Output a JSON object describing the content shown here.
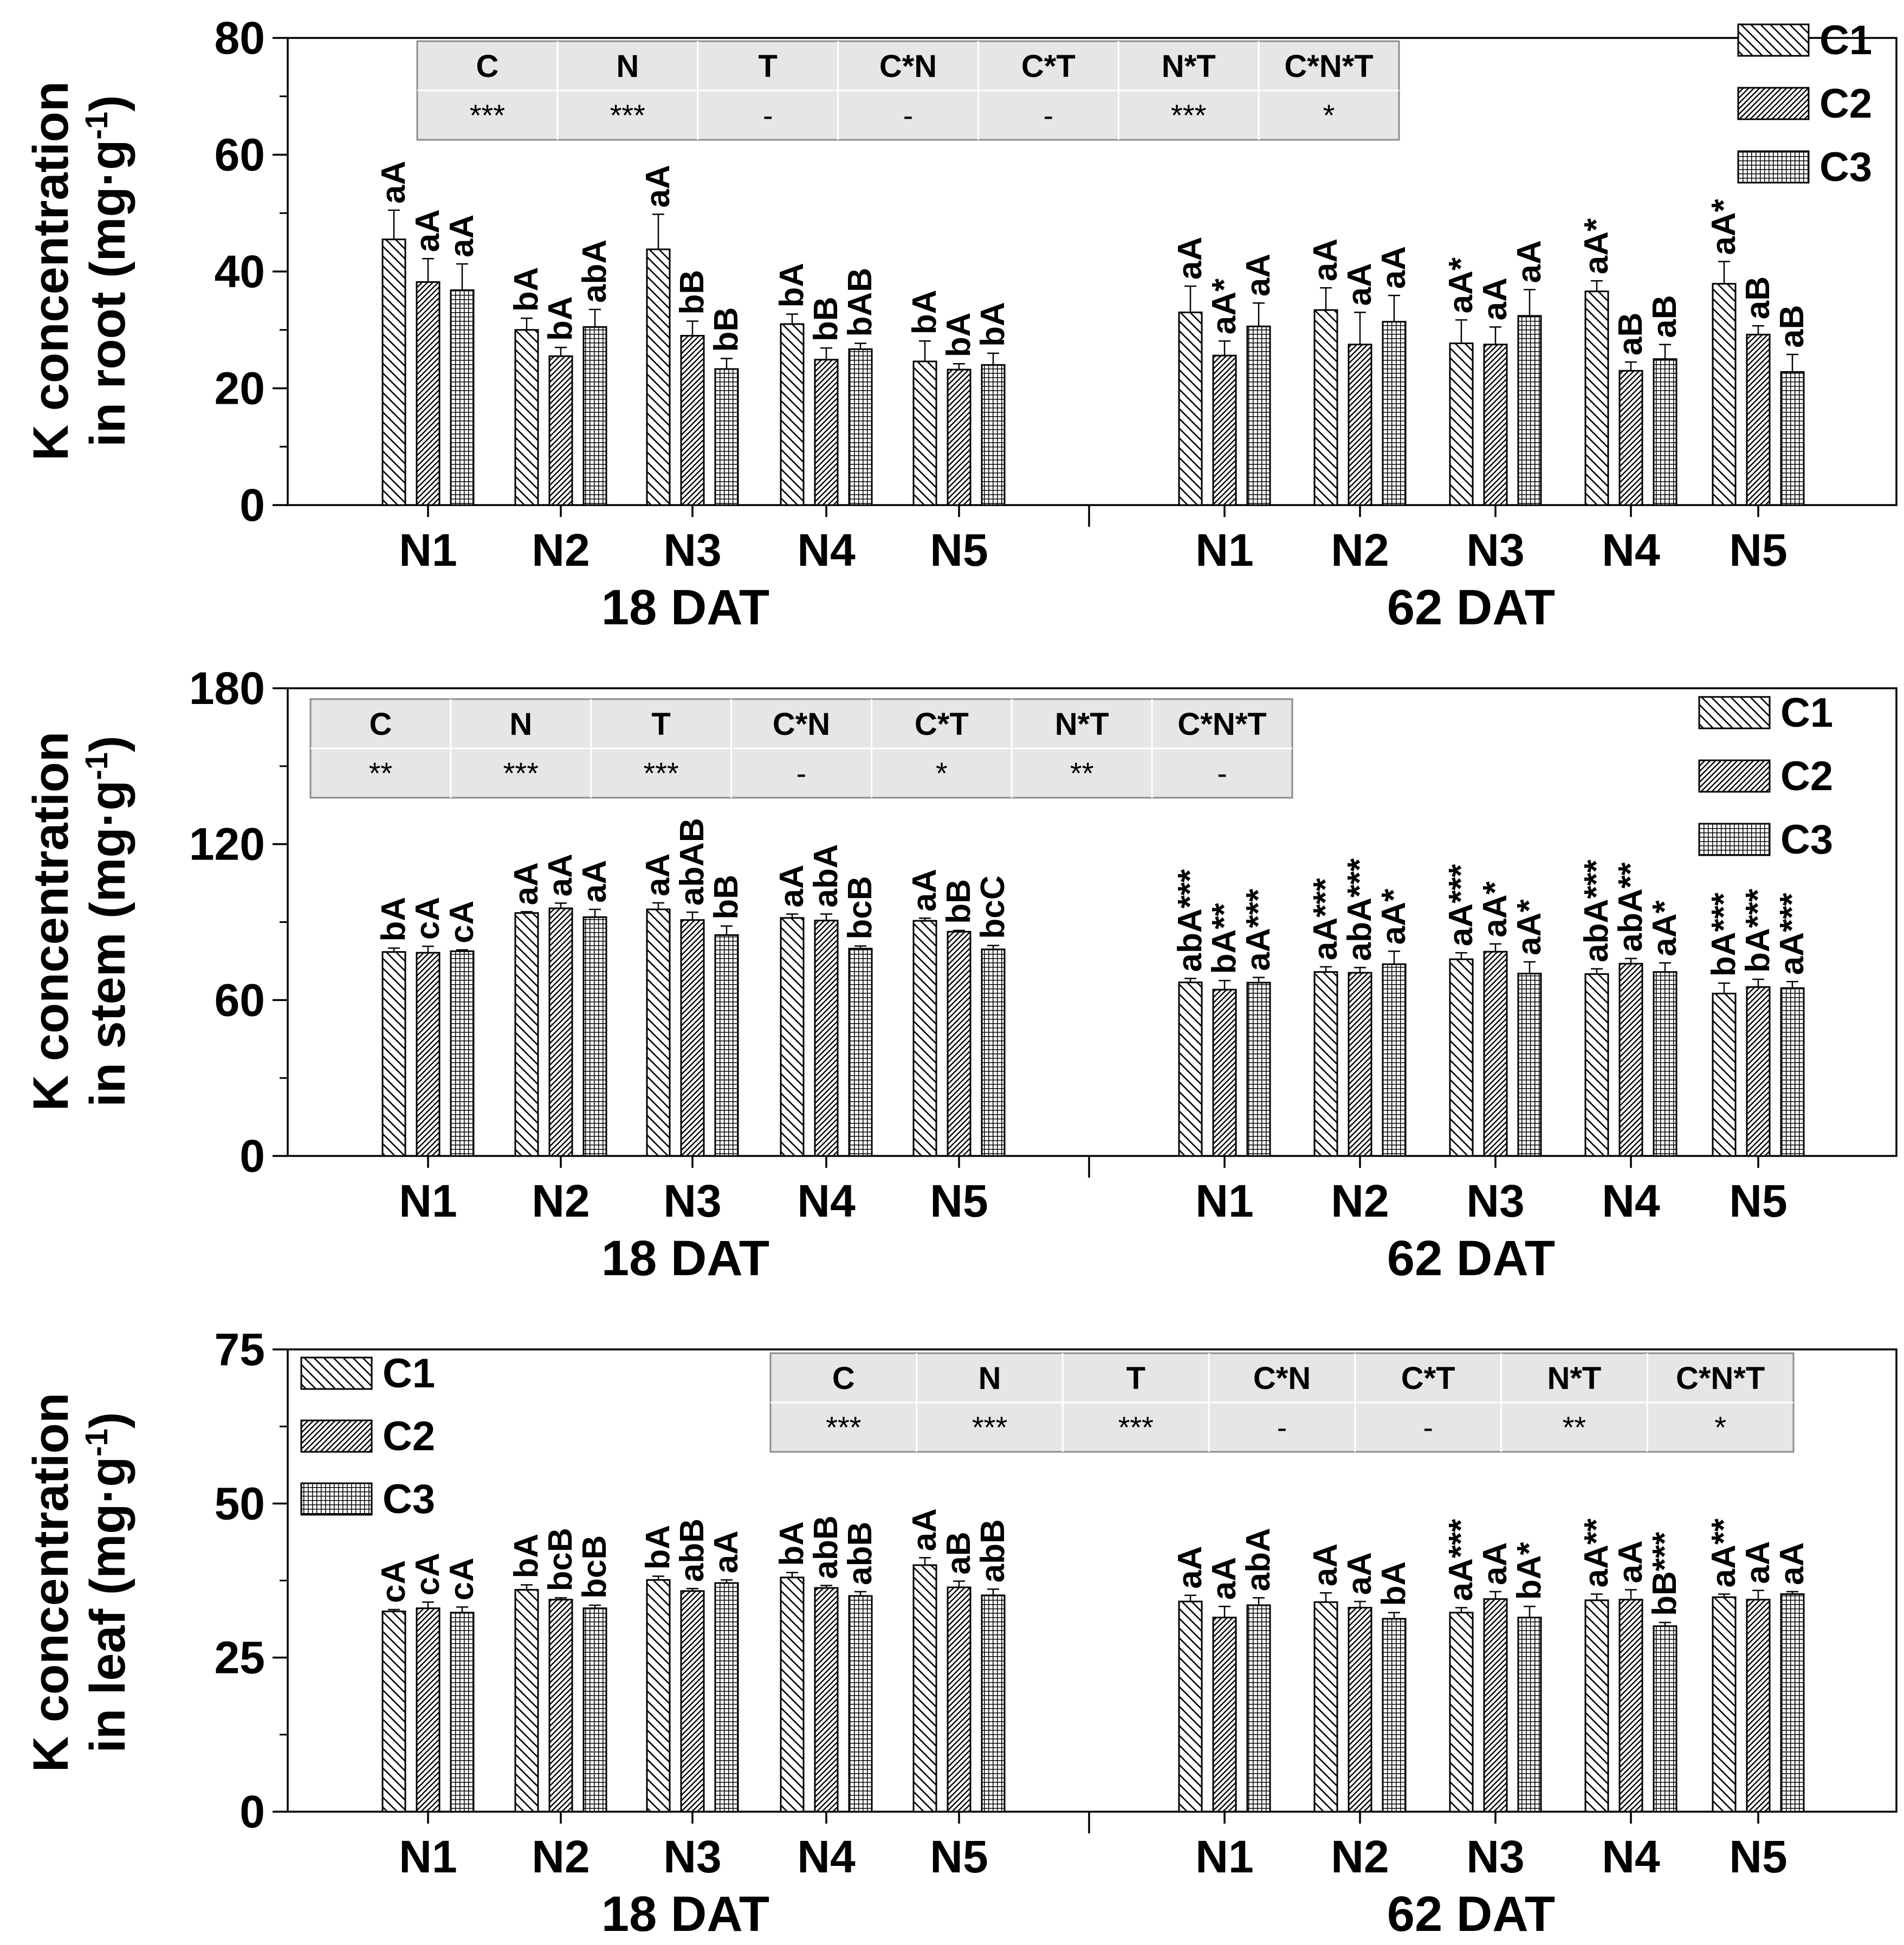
{
  "chart_data": [
    {
      "type": "bar",
      "ylabel_line1": "K concentration",
      "ylabel_line2": "in root (mg·g",
      "ylabel_sup": "-1",
      "ylabel_end": ")",
      "ylim": [
        0,
        80
      ],
      "yticks": [
        0,
        20,
        40,
        60,
        80
      ],
      "groups": [
        "18 DAT",
        "62 DAT"
      ],
      "categories": [
        "N1",
        "N2",
        "N3",
        "N4",
        "N5"
      ],
      "series": [
        {
          "name": "C1",
          "pattern": "diag",
          "values": [
            [
              45.5,
              30.0,
              43.8,
              31.0,
              24.6
            ],
            [
              33.0,
              33.4,
              27.7,
              36.6,
              37.9
            ]
          ],
          "errors": [
            [
              5.0,
              2.0,
              6.0,
              1.7,
              3.5
            ],
            [
              4.5,
              3.8,
              4.0,
              1.8,
              3.8
            ]
          ],
          "labels": [
            [
              "aA",
              "bA",
              "aA",
              "bA",
              "bA"
            ],
            [
              "aA",
              "aA",
              "aA*",
              "aA*",
              "aA*"
            ]
          ]
        },
        {
          "name": "C2",
          "pattern": "dense",
          "values": [
            [
              38.2,
              25.5,
              29.0,
              24.9,
              23.2
            ],
            [
              25.6,
              27.5,
              27.5,
              23.0,
              29.2
            ]
          ],
          "errors": [
            [
              4.0,
              1.5,
              2.5,
              2.0,
              1.0
            ],
            [
              2.5,
              5.5,
              3.0,
              1.5,
              1.5
            ]
          ],
          "labels": [
            [
              "aA",
              "bA",
              "bB",
              "bB",
              "bA"
            ],
            [
              "aA*",
              "aA",
              "aA",
              "aB",
              "aB"
            ]
          ]
        },
        {
          "name": "C3",
          "pattern": "grid",
          "values": [
            [
              36.8,
              30.5,
              23.3,
              26.7,
              24.0
            ],
            [
              30.6,
              31.4,
              32.4,
              25.0,
              22.8
            ]
          ],
          "errors": [
            [
              4.5,
              3.0,
              1.8,
              1.0,
              2.0
            ],
            [
              4.0,
              4.5,
              4.5,
              2.5,
              3.0
            ]
          ],
          "labels": [
            [
              "aA",
              "abA",
              "bB",
              "bAB",
              "bA"
            ],
            [
              "aA",
              "aA",
              "aA",
              "aB",
              "aB"
            ]
          ]
        }
      ],
      "stats_table": {
        "headers": [
          "C",
          "N",
          "T",
          "C*N",
          "C*T",
          "N*T",
          "C*N*T"
        ],
        "values": [
          "***",
          "***",
          "-",
          "-",
          "-",
          "***",
          "*"
        ]
      },
      "legend": "top-right"
    },
    {
      "type": "bar",
      "ylabel_line1": "K concentration",
      "ylabel_line2": "in stem (mg·g",
      "ylabel_sup": "-1",
      "ylabel_end": ")",
      "ylim": [
        0,
        180
      ],
      "yticks": [
        0,
        60,
        120,
        180
      ],
      "groups": [
        "18 DAT",
        "62 DAT"
      ],
      "categories": [
        "N1",
        "N2",
        "N3",
        "N4",
        "N5"
      ],
      "series": [
        {
          "name": "C1",
          "pattern": "diag",
          "values": [
            [
              78.5,
              93.5,
              94.9,
              91.6,
              90.5
            ],
            [
              66.8,
              70.8,
              75.7,
              70.0,
              62.5
            ]
          ],
          "errors": [
            [
              1.5,
              0.5,
              2.5,
              1.5,
              1.0
            ],
            [
              1.5,
              2.0,
              2.5,
              2.0,
              4.0
            ]
          ],
          "labels": [
            [
              "bA",
              "aA",
              "aA",
              "aA",
              "aA"
            ],
            [
              "abA***",
              "aA***",
              "aA***",
              "abA***",
              "bA***"
            ]
          ]
        },
        {
          "name": "C2",
          "pattern": "dense",
          "values": [
            [
              78.2,
              95.3,
              90.8,
              90.6,
              86.3
            ],
            [
              64.0,
              70.5,
              78.6,
              74.0,
              65.0
            ]
          ],
          "errors": [
            [
              2.5,
              2.0,
              3.0,
              2.5,
              0.5
            ],
            [
              3.5,
              2.0,
              3.0,
              2.0,
              3.0
            ]
          ],
          "labels": [
            [
              "cA",
              "aA",
              "abAB",
              "abA",
              "bB"
            ],
            [
              "bA**",
              "abA***",
              "aA*",
              "abA**",
              "bA***"
            ]
          ]
        },
        {
          "name": "C3",
          "pattern": "grid",
          "values": [
            [
              78.8,
              91.9,
              85.0,
              79.8,
              79.5
            ],
            [
              66.7,
              73.8,
              70.2,
              70.8,
              64.6
            ]
          ],
          "errors": [
            [
              0.5,
              3.0,
              3.5,
              1.0,
              1.5
            ],
            [
              2.0,
              5.0,
              4.5,
              3.5,
              2.5
            ]
          ],
          "labels": [
            [
              "cA",
              "aA",
              "bB",
              "bcB",
              "bcC"
            ],
            [
              "aA***",
              "aA*",
              "aA*",
              "aA*",
              "aA***"
            ]
          ]
        }
      ],
      "stats_table": {
        "headers": [
          "C",
          "N",
          "T",
          "C*N",
          "C*T",
          "N*T",
          "C*N*T"
        ],
        "values": [
          "**",
          "***",
          "***",
          "-",
          "*",
          "**",
          "-"
        ]
      },
      "legend": "top-right"
    },
    {
      "type": "bar",
      "ylabel_line1": "K concentration",
      "ylabel_line2": "in leaf (mg·g",
      "ylabel_sup": "-1",
      "ylabel_end": ")",
      "ylim": [
        0,
        75
      ],
      "yticks": [
        0,
        25,
        50,
        75
      ],
      "groups": [
        "18 DAT",
        "62 DAT"
      ],
      "categories": [
        "N1",
        "N2",
        "N3",
        "N4",
        "N5"
      ],
      "series": [
        {
          "name": "C1",
          "pattern": "diag",
          "values": [
            [
              32.5,
              36.0,
              37.6,
              38.0,
              40.0
            ],
            [
              34.1,
              34.0,
              32.3,
              34.3,
              34.8
            ]
          ],
          "errors": [
            [
              0.3,
              0.8,
              0.6,
              0.8,
              1.2
            ],
            [
              1.0,
              1.5,
              0.8,
              1.0,
              0.5
            ]
          ],
          "labels": [
            [
              "cA",
              "bA",
              "bA",
              "bA",
              "aA"
            ],
            [
              "aA",
              "aA",
              "aA***",
              "aA**",
              "aA**"
            ]
          ]
        },
        {
          "name": "C2",
          "pattern": "dense",
          "values": [
            [
              33.0,
              34.4,
              35.8,
              36.3,
              36.4
            ],
            [
              31.5,
              33.1,
              34.5,
              34.4,
              34.4
            ]
          ],
          "errors": [
            [
              1.0,
              0.3,
              0.4,
              0.4,
              1.0
            ],
            [
              1.8,
              1.0,
              1.2,
              1.6,
              1.5
            ]
          ],
          "labels": [
            [
              "cA",
              "bcB",
              "abB",
              "abB",
              "aB"
            ],
            [
              "aA",
              "aA",
              "aA",
              "aA",
              "aA"
            ]
          ]
        },
        {
          "name": "C3",
          "pattern": "grid",
          "values": [
            [
              32.3,
              33.0,
              37.1,
              35.0,
              35.1
            ],
            [
              33.5,
              31.3,
              31.5,
              30.1,
              35.3
            ]
          ],
          "errors": [
            [
              0.9,
              0.5,
              0.5,
              0.7,
              1.0
            ],
            [
              1.2,
              1.0,
              1.8,
              0.6,
              0.4
            ]
          ],
          "labels": [
            [
              "cA",
              "bcB",
              "aA",
              "abB",
              "abB"
            ],
            [
              "abA",
              "bA",
              "bA*",
              "bB***",
              "aA"
            ]
          ]
        }
      ],
      "stats_table": {
        "headers": [
          "C",
          "N",
          "T",
          "C*N",
          "C*T",
          "N*T",
          "C*N*T"
        ],
        "values": [
          "***",
          "***",
          "***",
          "-",
          "-",
          "**",
          "*"
        ]
      },
      "legend": "top-left"
    }
  ]
}
